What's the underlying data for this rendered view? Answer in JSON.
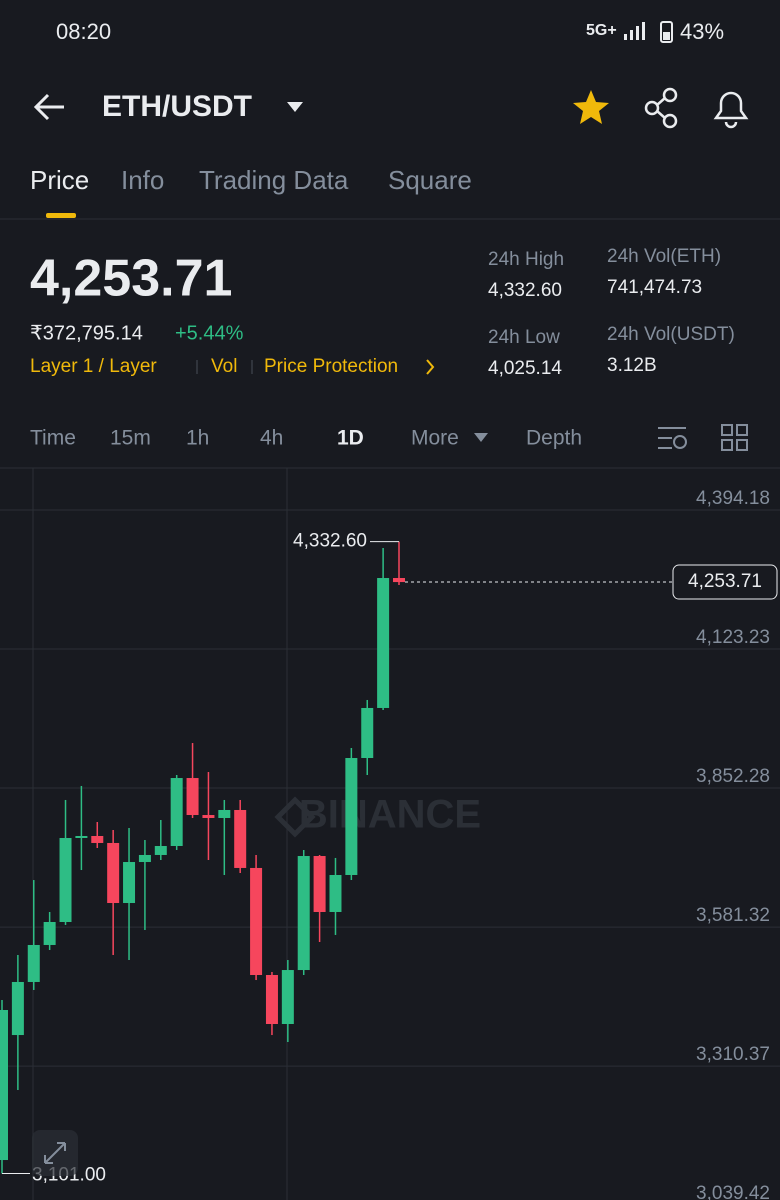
{
  "status": {
    "time": "08:20",
    "network": "5G+",
    "battery": "43%"
  },
  "header": {
    "pair": "ETH/USDT"
  },
  "tabs": [
    "Price",
    "Info",
    "Trading Data",
    "Square"
  ],
  "price": {
    "last": "4,253.71",
    "fiat": "₹372,795.14",
    "change": "+5.44%",
    "tags": [
      "Layer 1 / Layer",
      "Vol",
      "Price Protection"
    ]
  },
  "stats": [
    {
      "label": "24h High",
      "value": "4,332.60"
    },
    {
      "label": "24h Vol(ETH)",
      "value": "741,474.73"
    },
    {
      "label": "24h Low",
      "value": "4,025.14"
    },
    {
      "label": "24h Vol(USDT)",
      "value": "3.12B"
    }
  ],
  "intervals": [
    "Time",
    "15m",
    "1h",
    "4h",
    "1D",
    "More",
    "Depth"
  ],
  "chart_data": {
    "type": "candlestick",
    "watermark": "BINANCE",
    "up_color": "#2ebd85",
    "down_color": "#f6465d",
    "open": [
      3127.3,
      3370.9,
      3474.3,
      3546.4,
      3591.2,
      3754.9,
      3758.8,
      3745.2,
      3628.2,
      3708.1,
      3721.8,
      3739.3,
      3871.8,
      3799.7,
      3793.9,
      3809.5,
      3696.5,
      3487.9,
      3392.4,
      3497.6,
      3719.8,
      3610.7,
      3682.8,
      3910.8,
      4008.3,
      4261.6
    ],
    "high": [
      3439.2,
      3526.9,
      3673.0,
      3610.7,
      3829.0,
      3856.3,
      3786.1,
      3770.5,
      3774.4,
      3751.0,
      3790.0,
      3877.7,
      3940.0,
      3883.5,
      3829.0,
      3829.0,
      3721.8,
      3493.8,
      3517.1,
      3731.5,
      3721.8,
      3716.0,
      3930.3,
      4023.9,
      4320.1,
      4332.6
    ],
    "low": [
      3101.0,
      3263.8,
      3458.7,
      3536.6,
      3585.4,
      3692.5,
      3735.4,
      3526.9,
      3517.1,
      3575.6,
      3712.0,
      3731.5,
      3793.9,
      3712.0,
      3682.8,
      3686.7,
      3478.1,
      3370.9,
      3357.3,
      3487.9,
      3552.2,
      3565.9,
      3673.0,
      3877.7,
      4004.4,
      4248.0
    ],
    "close": [
      3419.7,
      3474.3,
      3546.4,
      3591.2,
      3754.9,
      3758.8,
      3745.2,
      3628.2,
      3708.1,
      3721.8,
      3739.3,
      3871.8,
      3799.7,
      3793.9,
      3809.5,
      3696.5,
      3487.9,
      3392.4,
      3497.6,
      3719.8,
      3610.7,
      3682.8,
      3910.8,
      4008.3,
      4261.6,
      4253.71
    ],
    "ylim": [
      3049.4,
      4472.1
    ],
    "yticks": [
      {
        "value": 4394.18,
        "label": "4,394.18"
      },
      {
        "value": 4123.23,
        "label": "4,123.23"
      },
      {
        "value": 3852.28,
        "label": "3,852.28"
      },
      {
        "value": 3581.32,
        "label": "3,581.32"
      },
      {
        "value": 3310.37,
        "label": "3,310.37"
      },
      {
        "value": 3039.42,
        "label": "3,039.42"
      }
    ],
    "last_price": {
      "value": 4253.71,
      "label": "4,253.71"
    },
    "high_marker": {
      "value": 4332.6,
      "label": "4,332.60"
    },
    "low_marker": {
      "value": 3101.0,
      "label": "3,101.00"
    },
    "grid": true
  }
}
